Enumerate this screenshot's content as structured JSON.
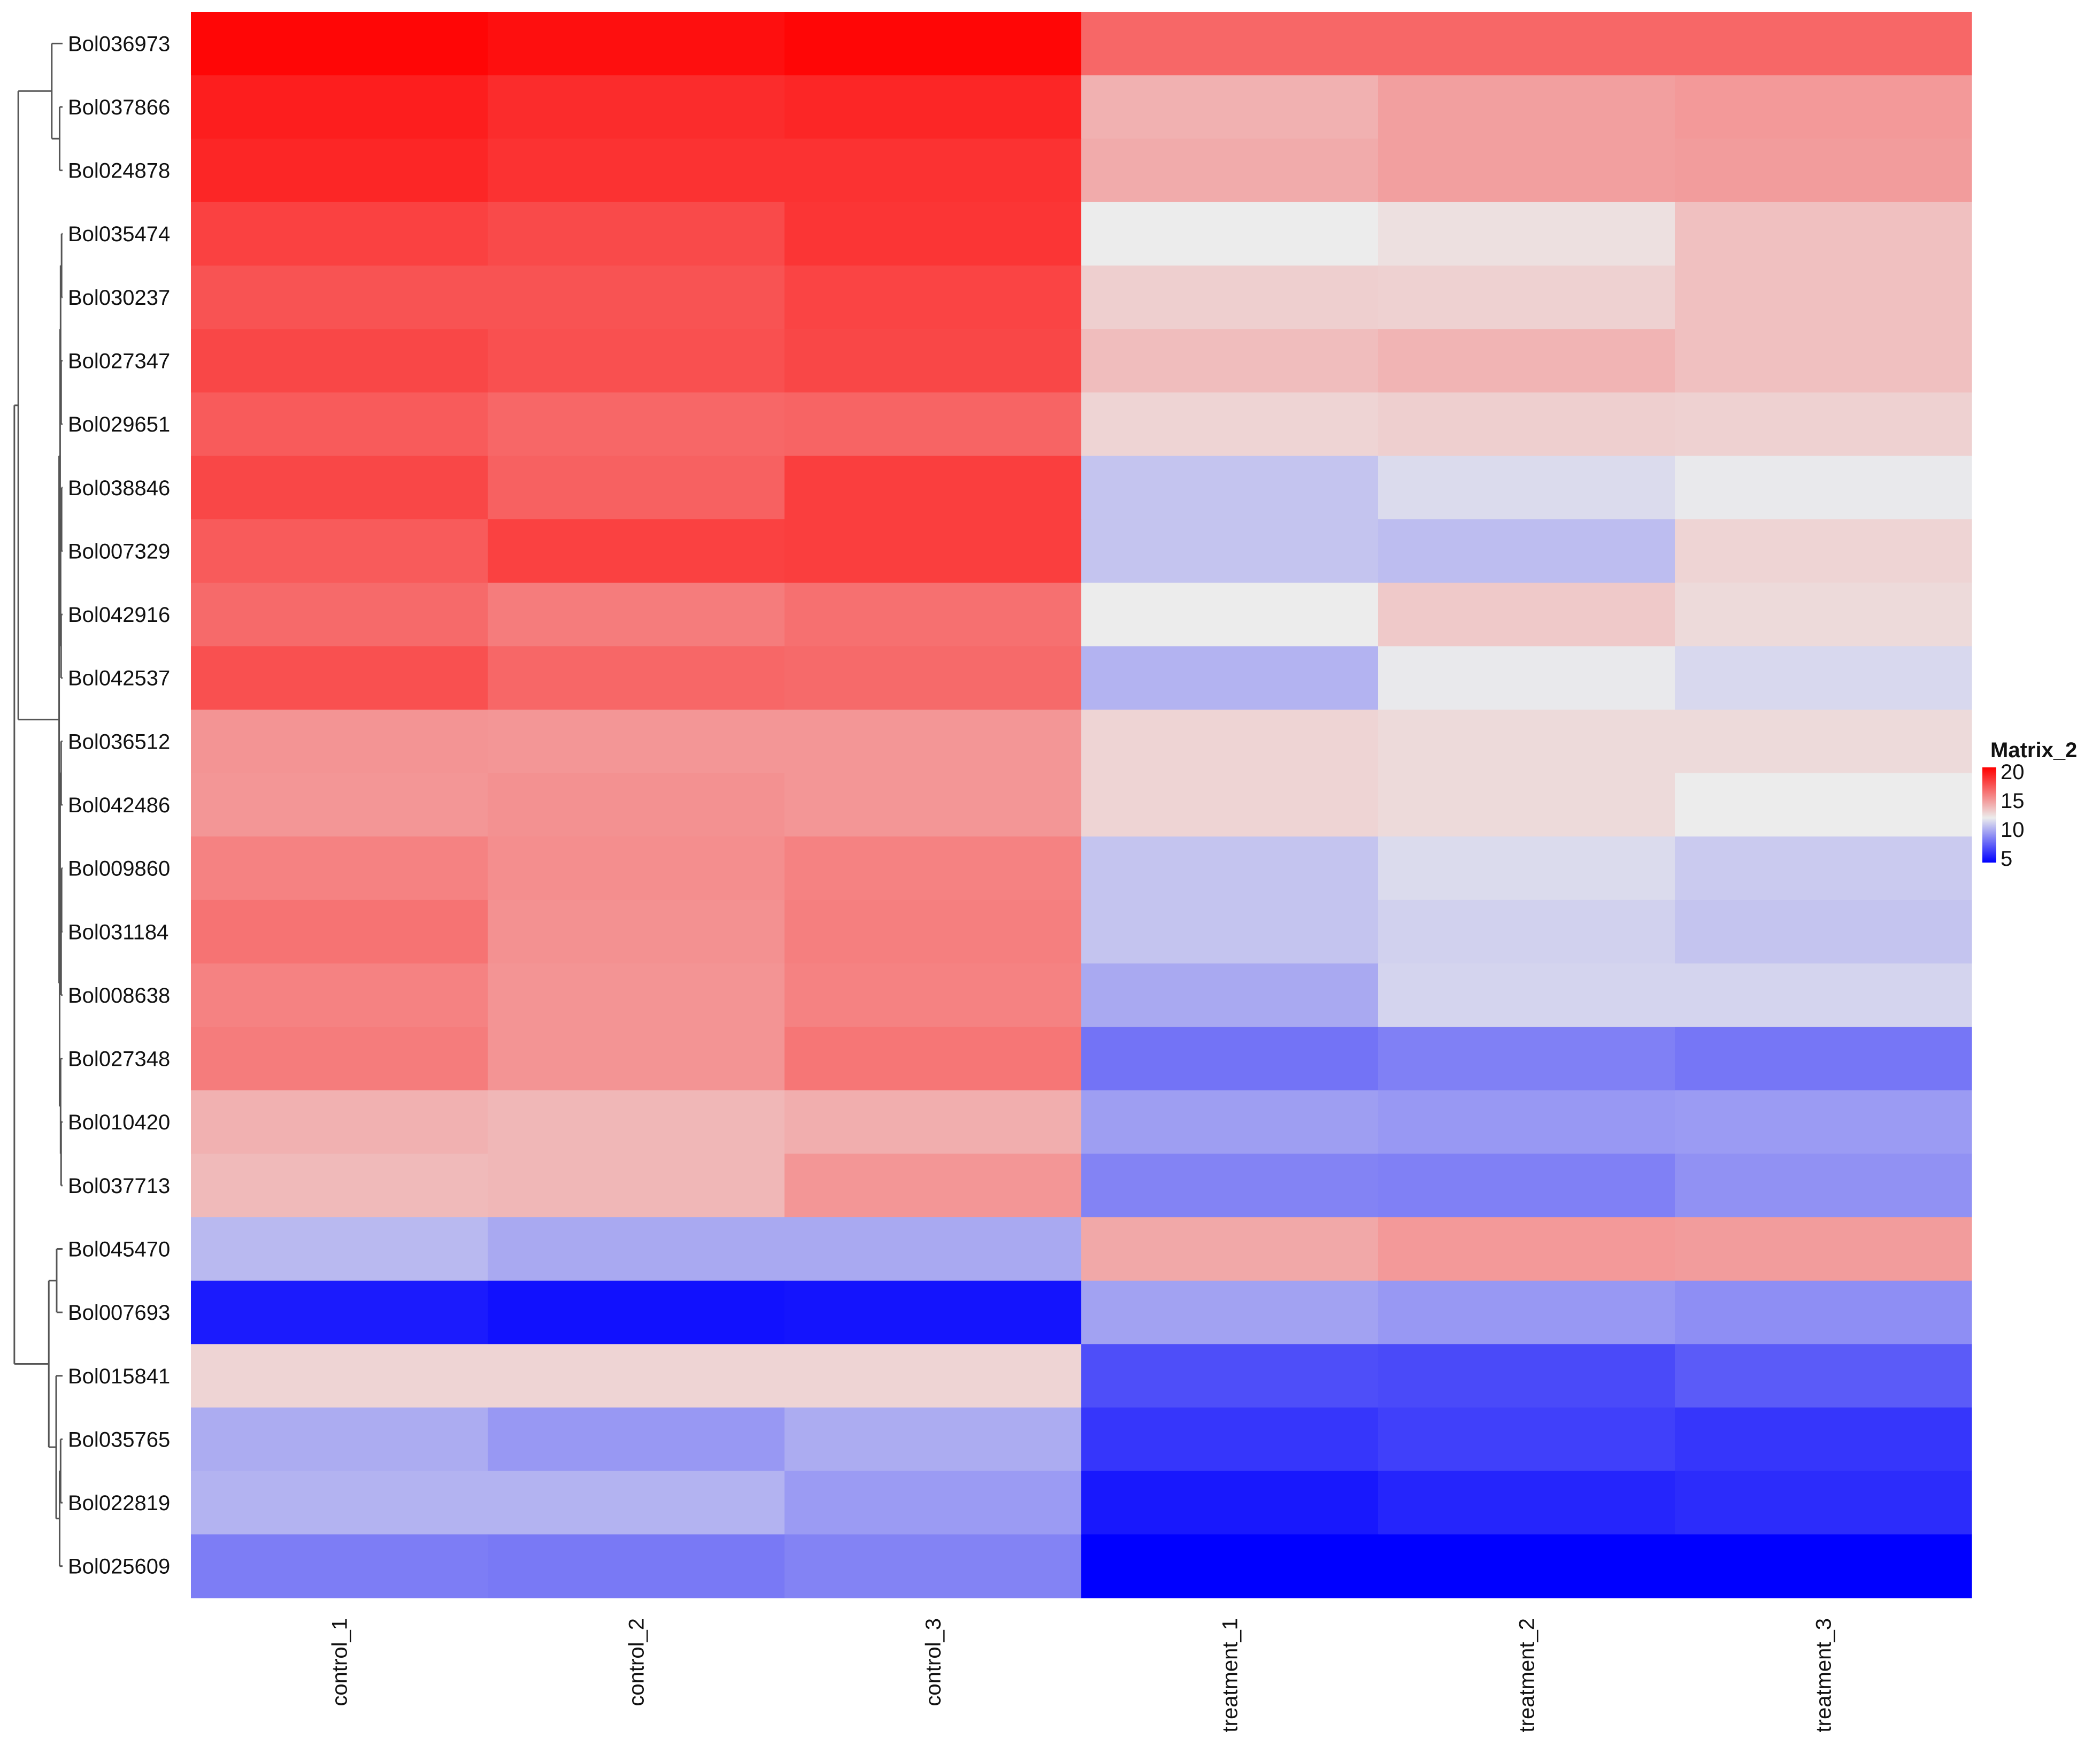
{
  "chart_data": {
    "type": "heatmap",
    "columns": [
      "control_1",
      "control_2",
      "control_3",
      "treatment_1",
      "treatment_2",
      "treatment_3"
    ],
    "rows": [
      "Bol036973",
      "Bol037866",
      "Bol024878",
      "Bol035474",
      "Bol030237",
      "Bol027347",
      "Bol029651",
      "Bol038846",
      "Bol007329",
      "Bol042916",
      "Bol042537",
      "Bol036512",
      "Bol042486",
      "Bol009860",
      "Bol031184",
      "Bol008638",
      "Bol027348",
      "Bol010420",
      "Bol037713",
      "Bol045470",
      "Bol007693",
      "Bol015841",
      "Bol035765",
      "Bol022819",
      "Bol025609"
    ],
    "values": [
      [
        19.8,
        19.5,
        19.8,
        16.5,
        16.5,
        16.5
      ],
      [
        19.0,
        18.5,
        18.7,
        14.0,
        14.6,
        14.8
      ],
      [
        18.7,
        18.3,
        18.3,
        14.2,
        14.6,
        14.7
      ],
      [
        17.8,
        17.5,
        18.2,
        12.0,
        12.4,
        13.5
      ],
      [
        17.2,
        17.2,
        17.7,
        13.0,
        12.9,
        13.5
      ],
      [
        17.6,
        17.3,
        17.6,
        13.6,
        13.9,
        13.5
      ],
      [
        16.9,
        16.5,
        16.6,
        12.8,
        13.0,
        12.9
      ],
      [
        17.6,
        16.7,
        17.9,
        10.8,
        11.5,
        11.9
      ],
      [
        16.9,
        17.8,
        17.9,
        10.8,
        10.6,
        12.8
      ],
      [
        16.4,
        15.8,
        16.2,
        12.0,
        13.2,
        12.6
      ],
      [
        17.3,
        16.5,
        16.4,
        10.3,
        11.9,
        11.4
      ],
      [
        15.0,
        14.9,
        14.9,
        12.8,
        12.6,
        12.6
      ],
      [
        14.9,
        15.1,
        14.9,
        12.8,
        12.6,
        12.0
      ],
      [
        15.6,
        15.2,
        15.6,
        10.8,
        11.5,
        11.0
      ],
      [
        16.1,
        15.1,
        15.7,
        10.8,
        11.2,
        10.8
      ],
      [
        15.6,
        15.0,
        15.6,
        10.0,
        11.3,
        11.3
      ],
      [
        15.8,
        15.0,
        16.0,
        8.4,
        8.8,
        8.5
      ],
      [
        14.0,
        13.8,
        14.1,
        9.7,
        9.5,
        9.6
      ],
      [
        13.7,
        13.8,
        14.9,
        8.9,
        8.8,
        9.3
      ],
      [
        10.5,
        10.0,
        10.0,
        14.3,
        14.8,
        14.7
      ],
      [
        5.8,
        5.5,
        5.6,
        9.8,
        9.5,
        9.2
      ],
      [
        12.8,
        12.8,
        12.8,
        7.3,
        7.2,
        7.7
      ],
      [
        10.1,
        9.5,
        10.1,
        6.6,
        6.9,
        6.6
      ],
      [
        10.3,
        10.3,
        9.6,
        5.7,
        6.1,
        6.3
      ],
      [
        8.7,
        8.6,
        8.9,
        1.0,
        1.0,
        2.5
      ]
    ],
    "colorscale": {
      "low": "#0000ff",
      "mid": "#ececec",
      "high": "#ff0000",
      "min": 5,
      "mid_value": 12,
      "max": 20
    },
    "legend": {
      "title": "Matrix_2",
      "ticks": [
        20,
        15,
        10,
        5
      ],
      "position": "right"
    },
    "row_dendrogram": true
  }
}
